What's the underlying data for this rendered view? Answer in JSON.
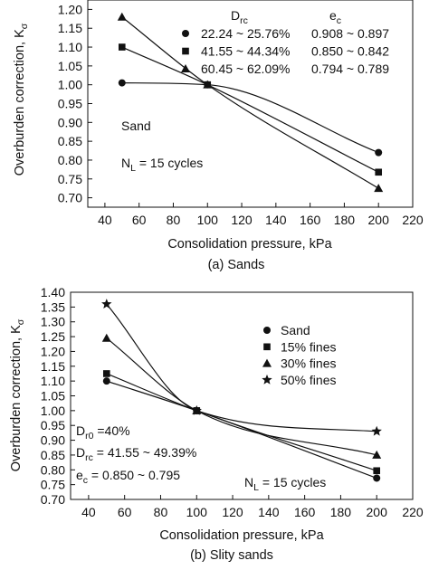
{
  "chart_data": [
    {
      "type": "line",
      "caption": "(a) Sands",
      "xlabel": "Consolidation pressure, kPa",
      "ylabel": "Overburden correction, K",
      "ylabel_sub": "σ",
      "xlim": [
        30,
        220
      ],
      "ylim": [
        0.675,
        1.225
      ],
      "xticks": [
        40,
        60,
        80,
        100,
        120,
        140,
        160,
        180,
        200,
        220
      ],
      "yticks": [
        "0.70",
        "0.75",
        "0.80",
        "0.85",
        "0.90",
        "0.95",
        "1.00",
        "1.05",
        "1.10",
        "1.15",
        "1.20"
      ],
      "legend_headers": {
        "drc_main": "D",
        "drc_sub": "rc",
        "ec_main": "e",
        "ec_sub": "c"
      },
      "series": [
        {
          "name": "22.24 ~ 25.76%",
          "ec": "0.908 ~ 0.897",
          "marker": "circle",
          "x": [
            50,
            100,
            200
          ],
          "y": [
            1.005,
            1.0,
            0.82
          ]
        },
        {
          "name": "41.55 ~ 44.34%",
          "ec": "0.850 ~ 0.842",
          "marker": "square",
          "x": [
            50,
            100,
            200
          ],
          "y": [
            1.1,
            1.0,
            0.768
          ]
        },
        {
          "name": "60.45 ~ 62.09%",
          "ec": "0.794 ~ 0.789",
          "marker": "triangle",
          "x": [
            50,
            100,
            200
          ],
          "y": [
            1.18,
            1.0,
            0.725
          ]
        }
      ],
      "annotations": {
        "material": "Sand",
        "nl_main": "N",
        "nl_sub": "L",
        "nl_rest": " = 15 cycles"
      }
    },
    {
      "type": "line",
      "caption": "(b) Slity sands",
      "xlabel": "Consolidation pressure, kPa",
      "ylabel": "Overburden correction, K",
      "ylabel_sub": "σ",
      "xlim": [
        30,
        220
      ],
      "ylim": [
        0.7,
        1.4
      ],
      "xticks": [
        40,
        60,
        80,
        100,
        120,
        140,
        160,
        180,
        200,
        220
      ],
      "yticks": [
        "0.70",
        "0.75",
        "0.80",
        "0.85",
        "0.90",
        "0.95",
        "1.00",
        "1.05",
        "1.10",
        "1.15",
        "1.20",
        "1.25",
        "1.30",
        "1.35",
        "1.40"
      ],
      "series": [
        {
          "name": "Sand",
          "marker": "circle",
          "x": [
            50,
            100,
            200
          ],
          "y": [
            1.1,
            1.0,
            0.772
          ]
        },
        {
          "name": "15% fines",
          "marker": "square",
          "x": [
            50,
            100,
            200
          ],
          "y": [
            1.125,
            1.0,
            0.797
          ]
        },
        {
          "name": "30% fines",
          "marker": "triangle",
          "x": [
            50,
            100,
            200
          ],
          "y": [
            1.245,
            1.0,
            0.85
          ]
        },
        {
          "name": "50% fines",
          "marker": "star",
          "x": [
            50,
            100,
            200
          ],
          "y": [
            1.36,
            1.0,
            0.93
          ]
        }
      ],
      "annotations": {
        "dr0_main": "D",
        "dr0_sub": "r0",
        "dr0_rest": " =40%",
        "drc_main": "D",
        "drc_sub": "rc",
        "drc_rest": " = 41.55 ~ 49.39%",
        "ec_main": "e",
        "ec_sub": "c",
        "ec_rest": " = 0.850 ~ 0.795",
        "nl_main": "N",
        "nl_sub": "L",
        "nl_rest": " = 15 cycles"
      }
    }
  ],
  "colors": {
    "ink": "#111111",
    "background": "#ffffff"
  }
}
